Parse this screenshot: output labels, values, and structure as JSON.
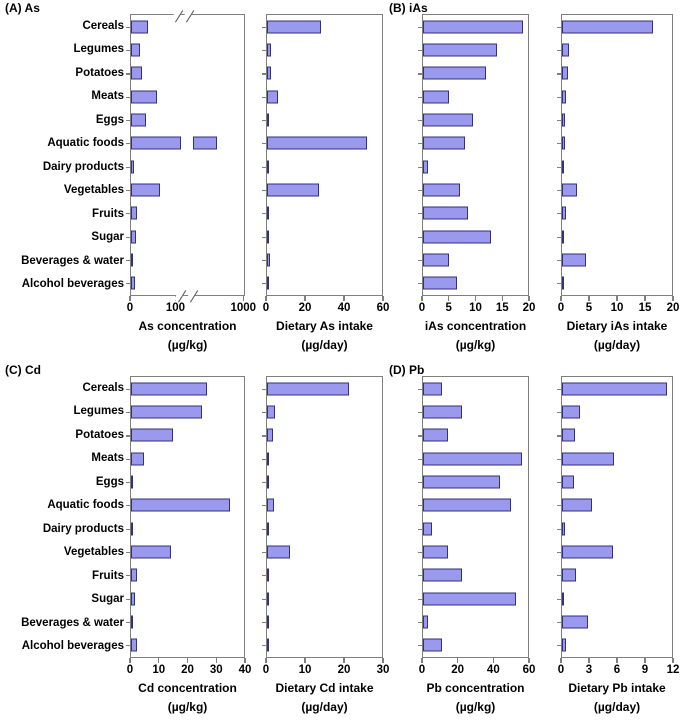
{
  "colors": {
    "bar_fill": "#9a99ee",
    "bar_border": "#31317c",
    "axis": "#7f7f7f",
    "text": "#000000"
  },
  "panels": {
    "a_title": "(A) As",
    "b_title": "(B) iAs",
    "c_title": "(C) Cd",
    "d_title": "(D) Pb"
  },
  "categories": [
    "Cereals",
    "Legumes",
    "Potatoes",
    "Meats",
    "Eggs",
    "Aquatic foods",
    "Dairy products",
    "Vegetables",
    "Fruits",
    "Sugar",
    "Beverages & water",
    "Alcohol beverages"
  ],
  "chart_data": [
    {
      "id": "as-concentration",
      "panel": "(A) As",
      "type": "bar",
      "xlabel": "As concentration",
      "xunit": "(µg/kg)",
      "axis_note": "broken axis: linear 0-100, break, then 1000",
      "ticks": [
        {
          "label": "0",
          "pct": 0
        },
        {
          "label": "100",
          "pct": 39.5
        },
        {
          "label": "1000",
          "pct": 98.5
        }
      ],
      "values": [
        36,
        20,
        23,
        58,
        32,
        420,
        3,
        63,
        12,
        9,
        1.5,
        7
      ],
      "bar_pcts": [
        14.8,
        8.4,
        10.1,
        23.2,
        13.3,
        -1,
        2.9,
        25.8,
        4.9,
        4,
        0.9,
        3.1
      ],
      "broken_bar": {
        "category": "Aquatic foods",
        "index": 5,
        "approx_value": 420,
        "segments_pct": [
          [
            0,
            44
          ],
          [
            55,
            76.5
          ]
        ]
      },
      "axis_breaks": {
        "top_pcts": [
          38,
          48
        ],
        "bottom_pcts": [
          41,
          51
        ]
      }
    },
    {
      "id": "dietary-as-intake",
      "panel": "(A) As",
      "type": "bar",
      "xlabel": "Dietary As intake",
      "xunit": "(µg/day)",
      "xlim": [
        0,
        60
      ],
      "ticks": [
        {
          "label": "0",
          "pct": 0
        },
        {
          "label": "20",
          "pct": 33.33
        },
        {
          "label": "40",
          "pct": 66.67
        },
        {
          "label": "60",
          "pct": 100
        }
      ],
      "values": [
        28,
        2,
        2,
        5.5,
        1,
        52,
        0.3,
        27,
        0.8,
        0.3,
        1.5,
        0.6
      ]
    },
    {
      "id": "ias-concentration",
      "panel": "(B) iAs",
      "type": "bar",
      "xlabel": "iAs concentration",
      "xunit": "(µg/kg)",
      "xlim": [
        0,
        20
      ],
      "ticks": [
        {
          "label": "0",
          "pct": 0
        },
        {
          "label": "5",
          "pct": 25
        },
        {
          "label": "10",
          "pct": 50
        },
        {
          "label": "15",
          "pct": 75
        },
        {
          "label": "20",
          "pct": 100
        }
      ],
      "values": [
        19,
        14,
        12,
        5,
        9.5,
        8,
        1,
        7,
        8.5,
        13,
        5,
        6.5
      ]
    },
    {
      "id": "dietary-ias-intake",
      "panel": "(B) iAs",
      "type": "bar",
      "xlabel": "Dietary iAs intake",
      "xunit": "(µg/day)",
      "xlim": [
        0,
        20
      ],
      "ticks": [
        {
          "label": "0",
          "pct": 0
        },
        {
          "label": "5",
          "pct": 25
        },
        {
          "label": "10",
          "pct": 50
        },
        {
          "label": "15",
          "pct": 75
        },
        {
          "label": "20",
          "pct": 100
        }
      ],
      "values": [
        16.5,
        1.3,
        1.1,
        0.7,
        0.5,
        0.5,
        0.15,
        2.8,
        0.7,
        0.15,
        4.3,
        0.4
      ]
    },
    {
      "id": "cd-concentration",
      "panel": "(C) Cd",
      "type": "bar",
      "xlabel": "Cd concentration",
      "xunit": "(µg/kg)",
      "xlim": [
        0,
        40
      ],
      "ticks": [
        {
          "label": "0",
          "pct": 0
        },
        {
          "label": "10",
          "pct": 25
        },
        {
          "label": "20",
          "pct": 50
        },
        {
          "label": "30",
          "pct": 75
        },
        {
          "label": "40",
          "pct": 100
        }
      ],
      "values": [
        27,
        25,
        15,
        4.5,
        0.8,
        35,
        0.4,
        14,
        2,
        1.3,
        0.4,
        2
      ]
    },
    {
      "id": "dietary-cd-intake",
      "panel": "(C) Cd",
      "type": "bar",
      "xlabel": "Dietary Cd intake",
      "xunit": "(µg/day)",
      "xlim": [
        0,
        30
      ],
      "ticks": [
        {
          "label": "0",
          "pct": 0
        },
        {
          "label": "10",
          "pct": 33.33
        },
        {
          "label": "20",
          "pct": 66.67
        },
        {
          "label": "30",
          "pct": 100
        }
      ],
      "values": [
        21.5,
        2,
        1.5,
        0.5,
        0.15,
        1.8,
        0.15,
        6,
        0.4,
        0.15,
        0.4,
        0.4
      ]
    },
    {
      "id": "pb-concentration",
      "panel": "(D) Pb",
      "type": "bar",
      "xlabel": "Pb concentration",
      "xunit": "(µg/kg)",
      "xlim": [
        0,
        60
      ],
      "ticks": [
        {
          "label": "0",
          "pct": 0
        },
        {
          "label": "20",
          "pct": 33.33
        },
        {
          "label": "40",
          "pct": 66.67
        },
        {
          "label": "60",
          "pct": 100
        }
      ],
      "values": [
        11,
        22,
        14.5,
        56.5,
        44,
        50,
        5,
        14,
        22,
        53,
        3,
        11
      ]
    },
    {
      "id": "dietary-pb-intake",
      "panel": "(D) Pb",
      "type": "bar",
      "xlabel": "Dietary Pb intake",
      "xunit": "(µg/day)",
      "xlim": [
        0,
        12
      ],
      "ticks": [
        {
          "label": "0",
          "pct": 0
        },
        {
          "label": "3",
          "pct": 25
        },
        {
          "label": "6",
          "pct": 50
        },
        {
          "label": "9",
          "pct": 75
        },
        {
          "label": "12",
          "pct": 100
        }
      ],
      "values": [
        11.5,
        2,
        1.4,
        5.7,
        1.3,
        3.3,
        0.3,
        5.6,
        1.5,
        0.15,
        2.8,
        0.4
      ]
    }
  ]
}
